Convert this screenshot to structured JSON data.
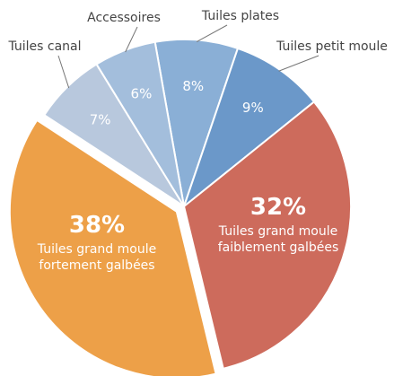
{
  "chart_data": {
    "type": "pie",
    "categories": [
      "Tuiles plates",
      "Tuiles petit moule",
      "Tuiles grand moule faiblement galbées",
      "Tuiles grand moule fortement galbées",
      "Tuiles canal",
      "Accessoires"
    ],
    "values": [
      8,
      9,
      32,
      38,
      7,
      6
    ],
    "value_labels": [
      "8%",
      "9%",
      "32%",
      "38%",
      "7%",
      "6%"
    ],
    "colors": [
      "#8aafd6",
      "#6b98c9",
      "#cd6b5c",
      "#eda048",
      "#b8c8dd",
      "#a3bedc"
    ],
    "exploded": [
      3
    ]
  }
}
